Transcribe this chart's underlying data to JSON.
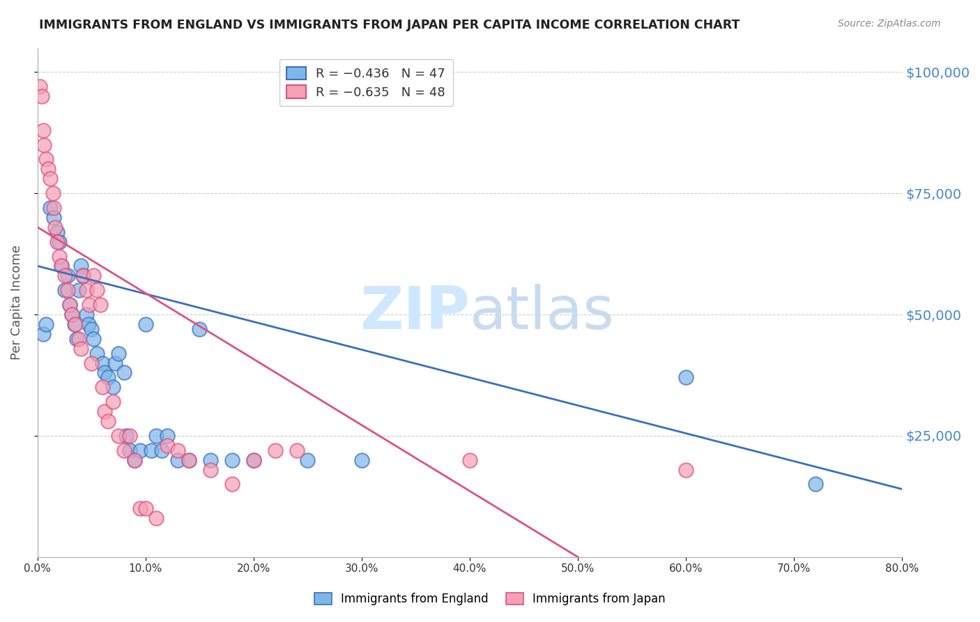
{
  "title": "IMMIGRANTS FROM ENGLAND VS IMMIGRANTS FROM JAPAN PER CAPITA INCOME CORRELATION CHART",
  "source": "Source: ZipAtlas.com",
  "ylabel": "Per Capita Income",
  "ytick_labels": [
    "$100,000",
    "$75,000",
    "$50,000",
    "$25,000"
  ],
  "ytick_values": [
    100000,
    75000,
    50000,
    25000
  ],
  "ylim": [
    0,
    105000
  ],
  "xlim": [
    0,
    0.8
  ],
  "legend_england": "R = −0.436   N = 47",
  "legend_japan": "R = −0.635   N = 48",
  "legend_label_england": "Immigrants from England",
  "legend_label_japan": "Immigrants from Japan",
  "color_england": "#7EB6E8",
  "color_japan": "#F4A0B5",
  "color_england_line": "#3A6FBF",
  "color_japan_line": "#E05080",
  "watermark_color": "#D0E8FF",
  "title_color": "#222222",
  "ytick_color": "#4488CC",
  "england_scatter_x": [
    0.005,
    0.008,
    0.012,
    0.015,
    0.018,
    0.02,
    0.022,
    0.025,
    0.028,
    0.03,
    0.032,
    0.034,
    0.036,
    0.038,
    0.04,
    0.042,
    0.045,
    0.047,
    0.05,
    0.052,
    0.055,
    0.06,
    0.062,
    0.065,
    0.07,
    0.072,
    0.075,
    0.08,
    0.082,
    0.085,
    0.09,
    0.095,
    0.1,
    0.105,
    0.11,
    0.115,
    0.12,
    0.13,
    0.14,
    0.15,
    0.16,
    0.18,
    0.2,
    0.25,
    0.3,
    0.6,
    0.72
  ],
  "england_scatter_y": [
    46000,
    48000,
    72000,
    70000,
    67000,
    65000,
    60000,
    55000,
    58000,
    52000,
    50000,
    48000,
    45000,
    55000,
    60000,
    58000,
    50000,
    48000,
    47000,
    45000,
    42000,
    40000,
    38000,
    37000,
    35000,
    40000,
    42000,
    38000,
    25000,
    22000,
    20000,
    22000,
    48000,
    22000,
    25000,
    22000,
    25000,
    20000,
    20000,
    47000,
    20000,
    20000,
    20000,
    20000,
    20000,
    37000,
    15000
  ],
  "japan_scatter_x": [
    0.002,
    0.004,
    0.005,
    0.006,
    0.008,
    0.01,
    0.012,
    0.014,
    0.015,
    0.016,
    0.018,
    0.02,
    0.022,
    0.025,
    0.028,
    0.03,
    0.032,
    0.035,
    0.038,
    0.04,
    0.042,
    0.045,
    0.048,
    0.05,
    0.052,
    0.055,
    0.058,
    0.06,
    0.062,
    0.065,
    0.07,
    0.075,
    0.08,
    0.085,
    0.09,
    0.095,
    0.1,
    0.11,
    0.12,
    0.13,
    0.14,
    0.16,
    0.18,
    0.2,
    0.22,
    0.24,
    0.4,
    0.6
  ],
  "japan_scatter_y": [
    97000,
    95000,
    88000,
    85000,
    82000,
    80000,
    78000,
    75000,
    72000,
    68000,
    65000,
    62000,
    60000,
    58000,
    55000,
    52000,
    50000,
    48000,
    45000,
    43000,
    58000,
    55000,
    52000,
    40000,
    58000,
    55000,
    52000,
    35000,
    30000,
    28000,
    32000,
    25000,
    22000,
    25000,
    20000,
    10000,
    10000,
    8000,
    23000,
    22000,
    20000,
    18000,
    15000,
    20000,
    22000,
    22000,
    20000,
    18000
  ],
  "england_line_x": [
    0.0,
    0.8
  ],
  "england_line_y": [
    60000,
    14000
  ],
  "japan_line_x": [
    0.0,
    0.5
  ],
  "japan_line_y": [
    68000,
    0
  ],
  "background_color": "#FFFFFF",
  "grid_color": "#CCCCCC"
}
